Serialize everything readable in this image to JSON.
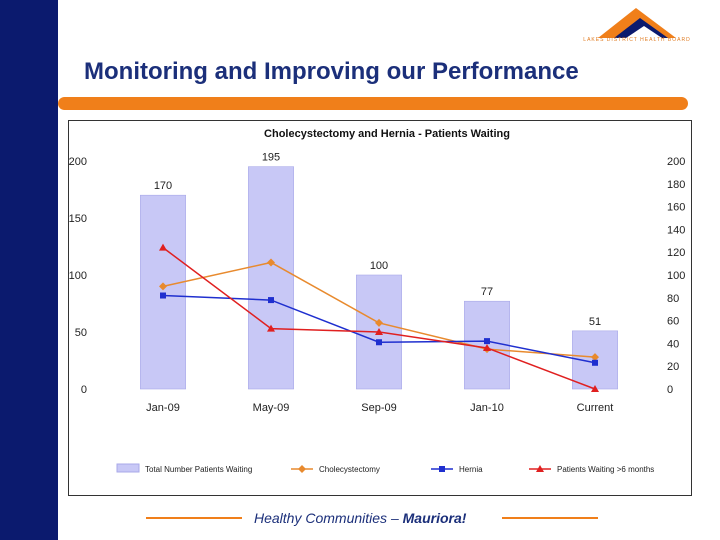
{
  "slide": {
    "title": "Monitoring and Improving our Performance",
    "logo_text": "LAKES DISTRICT HEALTH BOARD",
    "footer_text": "Healthy Communities – ",
    "footer_emphasis": "Mauriora!"
  },
  "colors": {
    "sidebar": "#0b1a6e",
    "accent": "#f07f1a",
    "title": "#1b2f7a"
  },
  "chart_data": {
    "type": "bar",
    "title": "Cholecystectomy and Hernia - Patients Waiting",
    "categories": [
      "Jan-09",
      "May-09",
      "Sep-09",
      "Jan-10",
      "Current"
    ],
    "bar_series": {
      "name": "Total Number Patients Waiting",
      "values": [
        170,
        195,
        100,
        77,
        51
      ],
      "display_labels": [
        "170",
        "195",
        "100",
        "77",
        "51"
      ],
      "color": "#c8c8f6",
      "axis": "left"
    },
    "line_series": [
      {
        "name": "Cholecystectomy",
        "values": [
          90,
          111,
          58,
          35,
          28
        ],
        "color": "#e88a2e",
        "marker": "diamond",
        "axis": "left"
      },
      {
        "name": "Hernia",
        "values": [
          82,
          78,
          41,
          42,
          23
        ],
        "color": "#1f2fcf",
        "marker": "square",
        "axis": "left"
      },
      {
        "name": "Patients Waiting >6 months",
        "values": [
          124,
          53,
          50,
          36,
          0
        ],
        "color": "#e02020",
        "marker": "triangle",
        "axis": "left"
      }
    ],
    "ylim_left": [
      0,
      200
    ],
    "yticks_left": [
      0,
      50,
      100,
      150,
      200
    ],
    "ylim_right": [
      0,
      200
    ],
    "yticks_right": [
      0,
      20,
      40,
      60,
      80,
      100,
      120,
      140,
      160,
      180,
      200
    ],
    "grid": false,
    "legend_position": "bottom"
  }
}
